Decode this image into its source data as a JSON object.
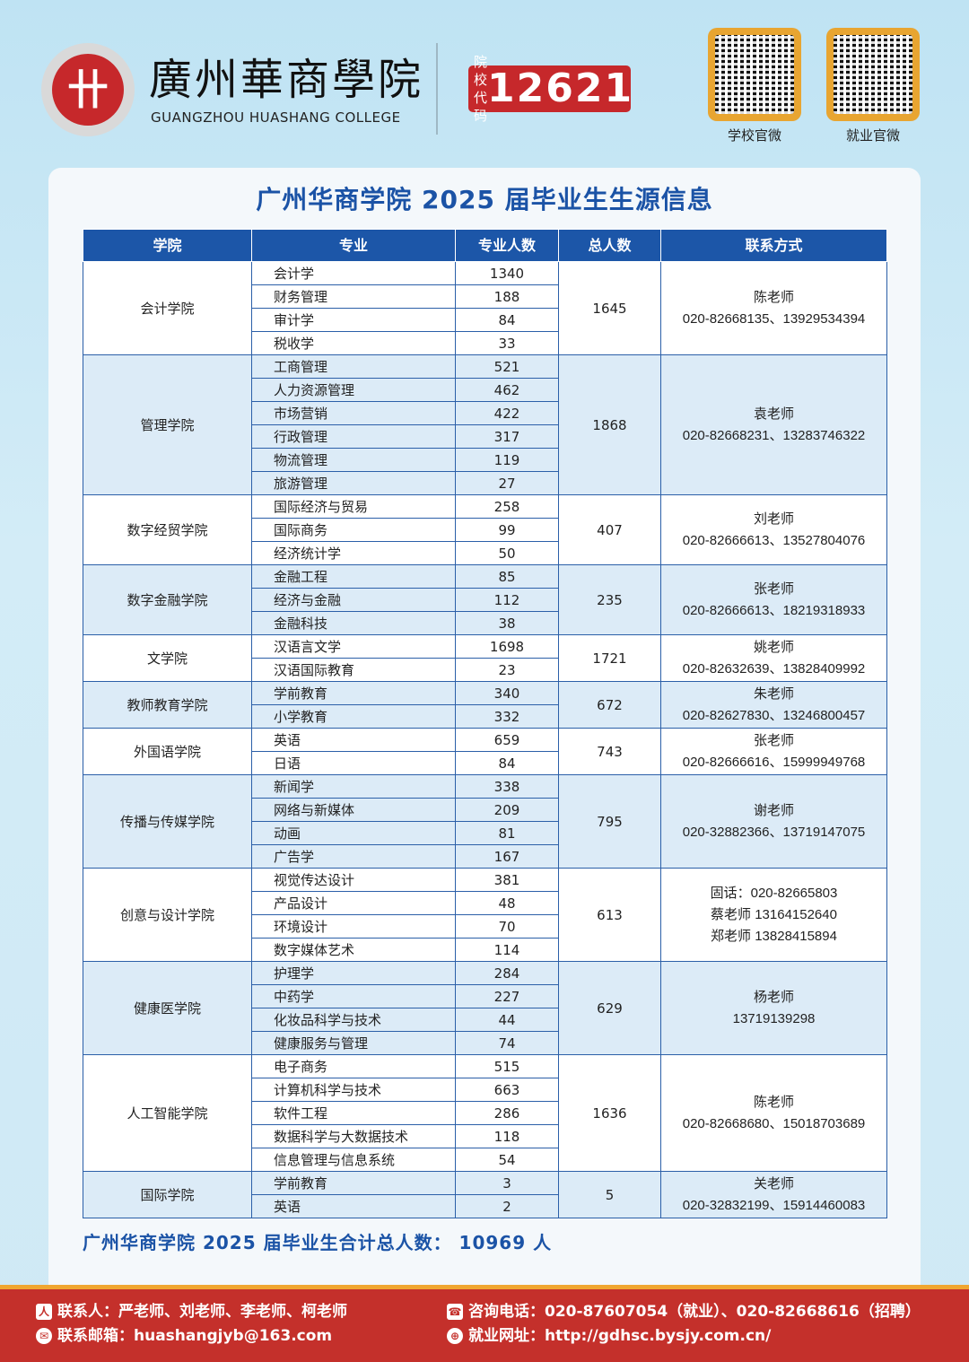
{
  "header": {
    "logo_mark": "卄",
    "name_cn": "廣州華商學院",
    "name_en": "GUANGZHOU HUASHANG COLLEGE",
    "code_label_1": "院校",
    "code_label_2": "代码",
    "code": "12621",
    "qr": [
      {
        "caption": "学校官微"
      },
      {
        "caption": "就业官微"
      }
    ]
  },
  "title": "广州华商学院 2025 届毕业生生源信息",
  "table": {
    "headers": [
      "学院",
      "专业",
      "专业人数",
      "总人数",
      "联系方式"
    ],
    "colleges": [
      {
        "name": "会计学院",
        "total": "1645",
        "contact": [
          "陈老师",
          "020-82668135、13929534394"
        ],
        "majors": [
          [
            "会计学",
            "1340"
          ],
          [
            "财务管理",
            "188"
          ],
          [
            "审计学",
            "84"
          ],
          [
            "税收学",
            "33"
          ]
        ]
      },
      {
        "name": "管理学院",
        "total": "1868",
        "contact": [
          "袁老师",
          "020-82668231、13283746322"
        ],
        "majors": [
          [
            "工商管理",
            "521"
          ],
          [
            "人力资源管理",
            "462"
          ],
          [
            "市场营销",
            "422"
          ],
          [
            "行政管理",
            "317"
          ],
          [
            "物流管理",
            "119"
          ],
          [
            "旅游管理",
            "27"
          ]
        ]
      },
      {
        "name": "数字经贸学院",
        "total": "407",
        "contact": [
          "刘老师",
          "020-82666613、13527804076"
        ],
        "majors": [
          [
            "国际经济与贸易",
            "258"
          ],
          [
            "国际商务",
            "99"
          ],
          [
            "经济统计学",
            "50"
          ]
        ]
      },
      {
        "name": "数字金融学院",
        "total": "235",
        "contact": [
          "张老师",
          "020-82666613、18219318933"
        ],
        "majors": [
          [
            "金融工程",
            "85"
          ],
          [
            "经济与金融",
            "112"
          ],
          [
            "金融科技",
            "38"
          ]
        ]
      },
      {
        "name": "文学院",
        "total": "1721",
        "contact": [
          "姚老师",
          "020-82632639、13828409992"
        ],
        "majors": [
          [
            "汉语言文学",
            "1698"
          ],
          [
            "汉语国际教育",
            "23"
          ]
        ]
      },
      {
        "name": "教师教育学院",
        "total": "672",
        "contact": [
          "朱老师",
          "020-82627830、13246800457"
        ],
        "majors": [
          [
            "学前教育",
            "340"
          ],
          [
            "小学教育",
            "332"
          ]
        ]
      },
      {
        "name": "外国语学院",
        "total": "743",
        "contact": [
          "张老师",
          "020-82666616、15999949768"
        ],
        "majors": [
          [
            "英语",
            "659"
          ],
          [
            "日语",
            "84"
          ]
        ]
      },
      {
        "name": "传播与传媒学院",
        "total": "795",
        "contact": [
          "谢老师",
          "020-32882366、13719147075"
        ],
        "majors": [
          [
            "新闻学",
            "338"
          ],
          [
            "网络与新媒体",
            "209"
          ],
          [
            "动画",
            "81"
          ],
          [
            "广告学",
            "167"
          ]
        ]
      },
      {
        "name": "创意与设计学院",
        "total": "613",
        "contact": [
          "固话：020-82665803",
          "蔡老师 13164152640",
          "郑老师 13828415894"
        ],
        "majors": [
          [
            "视觉传达设计",
            "381"
          ],
          [
            "产品设计",
            "48"
          ],
          [
            "环境设计",
            "70"
          ],
          [
            "数字媒体艺术",
            "114"
          ]
        ]
      },
      {
        "name": "健康医学院",
        "total": "629",
        "contact": [
          "杨老师",
          "13719139298"
        ],
        "majors": [
          [
            "护理学",
            "284"
          ],
          [
            "中药学",
            "227"
          ],
          [
            "化妆品科学与技术",
            "44"
          ],
          [
            "健康服务与管理",
            "74"
          ]
        ]
      },
      {
        "name": "人工智能学院",
        "total": "1636",
        "contact": [
          "陈老师",
          "020-82668680、15018703689"
        ],
        "majors": [
          [
            "电子商务",
            "515"
          ],
          [
            "计算机科学与技术",
            "663"
          ],
          [
            "软件工程",
            "286"
          ],
          [
            "数据科学与大数据技术",
            "118"
          ],
          [
            "信息管理与信息系统",
            "54"
          ]
        ]
      },
      {
        "name": "国际学院",
        "total": "5",
        "contact": [
          "关老师",
          "020-32832199、15914460083"
        ],
        "majors": [
          [
            "学前教育",
            "3"
          ],
          [
            "英语",
            "2"
          ]
        ]
      }
    ]
  },
  "grand_total": "广州华商学院 2025 届毕业生合计总人数：  10969  人",
  "footer": {
    "contacts": "联系人：严老师、刘老师、李老师、柯老师",
    "email": "联系邮箱：huashangjyb@163.com",
    "phone": "咨询电话：020-87607054（就业）、020-82668616（招聘）",
    "website": "就业网址：http://gdhsc.bysjy.com.cn/"
  },
  "colors": {
    "accent_blue": "#1c56a8",
    "brand_red": "#c6282b",
    "footer_red": "#c4302b",
    "gold": "#e8a531"
  }
}
